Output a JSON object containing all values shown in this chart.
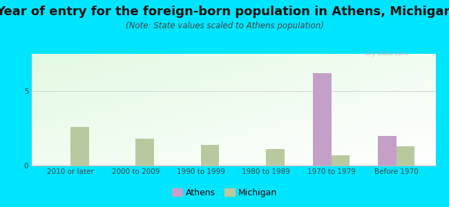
{
  "title": "Year of entry for the foreign-born population in Athens, Michigan",
  "subtitle": "(Note: State values scaled to Athens population)",
  "categories": [
    "2010 or later",
    "2000 to 2009",
    "1990 to 1999",
    "1980 to 1989",
    "1970 to 1979",
    "Before 1970"
  ],
  "athens_values": [
    0,
    0,
    0,
    0,
    6.2,
    2.0
  ],
  "michigan_values": [
    2.6,
    1.8,
    1.4,
    1.1,
    0.7,
    1.3
  ],
  "athens_color": "#c4a0c8",
  "michigan_color": "#b8c9a0",
  "background_outer": "#00e5ff",
  "background_plot_topleft": "#d6ecd8",
  "background_plot_botright": "#f5faf5",
  "ylim": [
    0,
    7.5
  ],
  "yticks": [
    0,
    5
  ],
  "bar_width": 0.28,
  "title_fontsize": 13,
  "subtitle_fontsize": 8.5,
  "tick_fontsize": 7.5,
  "legend_fontsize": 9
}
